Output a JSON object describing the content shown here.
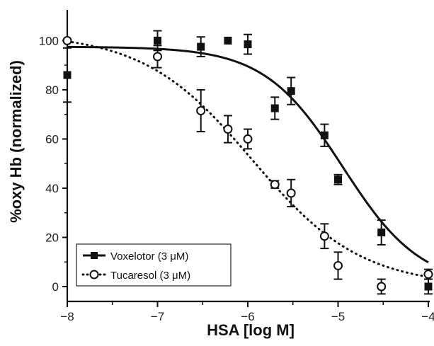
{
  "chart_data": {
    "type": "scatter",
    "xlabel": "HSA [log M]",
    "ylabel": "%oxy Hb (normalized)",
    "xlim": [
      -8,
      -4
    ],
    "ylim": [
      0,
      105
    ],
    "x_ticks": [
      -8,
      -7,
      -6,
      -5,
      -4
    ],
    "x_tick_labels": [
      "−8",
      "−7",
      "−6",
      "−5",
      "−4"
    ],
    "y_ticks": [
      0,
      20,
      40,
      60,
      80,
      100
    ],
    "y_tick_labels": [
      "0",
      "20",
      "40",
      "60",
      "80",
      "100"
    ],
    "legend_position": "bottom-left",
    "series": [
      {
        "name": "Voxelotor (3 μM)",
        "marker": "filled-square",
        "color": "#111111",
        "fit": "solid",
        "points": [
          {
            "x": -8.0,
            "y": 86,
            "err": 11
          },
          {
            "x": -7.0,
            "y": 100,
            "err": 4
          },
          {
            "x": -6.52,
            "y": 97.5,
            "err": 4
          },
          {
            "x": -6.22,
            "y": 100,
            "err": 0
          },
          {
            "x": -6.0,
            "y": 98.5,
            "err": 4
          },
          {
            "x": -5.7,
            "y": 72.5,
            "err": 4.5
          },
          {
            "x": -5.52,
            "y": 79.5,
            "err": 5.5
          },
          {
            "x": -5.15,
            "y": 61.5,
            "err": 4.5
          },
          {
            "x": -5.0,
            "y": 43.5,
            "err": 2
          },
          {
            "x": -4.52,
            "y": 22,
            "err": 5
          },
          {
            "x": -4.0,
            "y": 0,
            "err": 3
          }
        ],
        "fit_params": {
          "top": 97.5,
          "bottom": 0,
          "logIC50": -4.95,
          "hill": 1.0
        }
      },
      {
        "name": "Tucaresol (3 μM)",
        "marker": "open-circle",
        "color": "#111111",
        "fit": "dotted",
        "points": [
          {
            "x": -8.0,
            "y": 100,
            "err": 0
          },
          {
            "x": -7.0,
            "y": 93.5,
            "err": 4.5
          },
          {
            "x": -6.52,
            "y": 71.5,
            "err": 8.5
          },
          {
            "x": -6.22,
            "y": 64,
            "err": 5.5
          },
          {
            "x": -6.0,
            "y": 60,
            "err": 4
          },
          {
            "x": -5.7,
            "y": 41.5,
            "err": 1.5
          },
          {
            "x": -5.52,
            "y": 38,
            "err": 5.5
          },
          {
            "x": -5.15,
            "y": 20.5,
            "err": 5
          },
          {
            "x": -5.0,
            "y": 8.5,
            "err": 5.5
          },
          {
            "x": -4.52,
            "y": 0,
            "err": 3
          },
          {
            "x": -4.0,
            "y": 5,
            "err": 2
          }
        ],
        "fit_params": {
          "top": 103,
          "bottom": 0,
          "logIC50": -5.95,
          "hill": 0.72
        }
      }
    ]
  }
}
